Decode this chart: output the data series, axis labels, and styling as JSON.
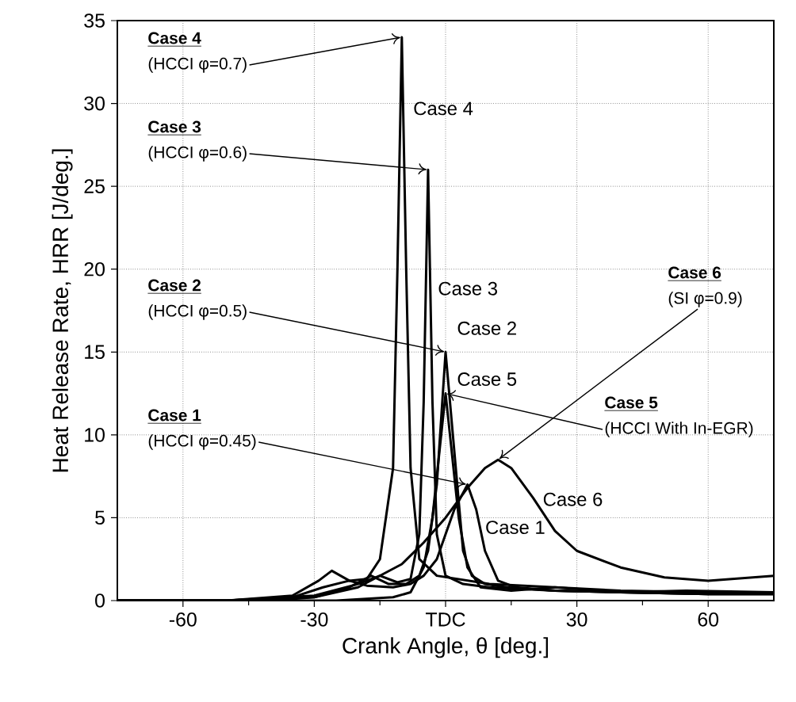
{
  "chart_data": {
    "type": "line",
    "xlabel": "Crank Angle, θ [deg.]",
    "ylabel": "Heat Release Rate, HRR [J/deg.]",
    "xlim": [
      -75,
      75
    ],
    "xticks": [
      -60,
      {
        "value": -45,
        "label": null
      },
      -30,
      {
        "value": -15,
        "label": null
      },
      {
        "value": 0,
        "label": "TDC"
      },
      {
        "value": 15,
        "label": null
      },
      30,
      {
        "value": 45,
        "label": null
      },
      60
    ],
    "ylim": [
      0,
      35
    ],
    "yticks": [
      0,
      5,
      10,
      15,
      20,
      25,
      30,
      35
    ],
    "grid": true,
    "series": [
      {
        "name": "Case 1",
        "color": "#000000",
        "x": [
          -75,
          -50,
          -35,
          -28,
          -22,
          -18,
          -12,
          -8,
          -5,
          -2,
          0,
          2,
          5,
          7,
          9,
          12,
          16,
          25,
          40,
          60,
          75
        ],
        "values": [
          0,
          0,
          0.2,
          0.8,
          1.2,
          0.9,
          0.8,
          1,
          1.5,
          2.5,
          4,
          5.5,
          7,
          5.5,
          3,
          1.2,
          0.8,
          0.6,
          0.5,
          0.4,
          0.4
        ]
      },
      {
        "name": "Case 2",
        "color": "#000000",
        "x": [
          -75,
          -50,
          -30,
          -22,
          -17,
          -13,
          -9,
          -6,
          -4,
          -2,
          0,
          2,
          4,
          6,
          9,
          14,
          25,
          40,
          60,
          75
        ],
        "values": [
          0,
          0,
          0.2,
          0.8,
          1.5,
          1,
          1,
          1.5,
          3,
          7,
          15,
          9,
          3,
          1.5,
          1,
          0.8,
          0.6,
          0.5,
          0.4,
          0.4
        ]
      },
      {
        "name": "Case 3",
        "color": "#000000",
        "x": [
          -75,
          -50,
          -30,
          -20,
          -15,
          -11,
          -8,
          -6,
          -5,
          -4,
          -3,
          -2,
          0,
          4,
          10,
          25,
          40,
          60,
          75
        ],
        "values": [
          0,
          0,
          0.3,
          1,
          1.5,
          1.1,
          1.3,
          4,
          12,
          26,
          12,
          4,
          1.5,
          1,
          0.8,
          0.6,
          0.5,
          0.4,
          0.4
        ]
      },
      {
        "name": "Case 4",
        "color": "#000000",
        "x": [
          -75,
          -50,
          -35,
          -29,
          -26,
          -22,
          -18,
          -15,
          -12,
          -11,
          -10,
          -9,
          -8,
          -6,
          -2,
          10,
          25,
          40,
          60,
          75
        ],
        "values": [
          0,
          0,
          0.3,
          1.2,
          1.8,
          1.2,
          1.3,
          2.5,
          8,
          20,
          34,
          20,
          8,
          2.5,
          1.5,
          1,
          0.8,
          0.6,
          0.5,
          0.5
        ]
      },
      {
        "name": "Case 5",
        "color": "#000000",
        "x": [
          -75,
          -50,
          -25,
          -12,
          -8,
          -5,
          -3,
          -1,
          0,
          1,
          3,
          5,
          8,
          15,
          25,
          40,
          55,
          75
        ],
        "values": [
          0,
          0,
          0,
          0.2,
          0.5,
          2,
          5,
          10,
          12.5,
          10,
          5,
          2,
          0.8,
          0.6,
          0.8,
          0.5,
          0.6,
          0.5
        ]
      },
      {
        "name": "Case 6",
        "color": "#000000",
        "x": [
          -75,
          -40,
          -30,
          -20,
          -10,
          -5,
          0,
          5,
          9,
          12,
          15,
          20,
          25,
          30,
          40,
          50,
          60,
          75
        ],
        "values": [
          0,
          0,
          0.2,
          0.8,
          2.2,
          3.5,
          5,
          6.8,
          8,
          8.5,
          8,
          6.2,
          4.2,
          3,
          2,
          1.4,
          1.2,
          1.5
        ]
      }
    ],
    "annotations": [
      "Case 1",
      {
        "text": "(HCCI φ=0.45)",
        "x": 5,
        "y": 7
      },
      "Case 2",
      {
        "text": "(HCCI φ=0.5)",
        "x": 0,
        "y": 15
      },
      "Case 3",
      {
        "text": "(HCCI φ=0.6)",
        "x": -4,
        "y": 26
      },
      "Case 4",
      {
        "text": "(HCCI φ=0.7)",
        "x": -10,
        "y": 34
      },
      "Case 5",
      {
        "text": "(HCCI With In-EGR)",
        "x": 0,
        "y": 12.5
      },
      "Case 6",
      {
        "text": "(SI φ=0.9)",
        "x": 12,
        "y": 8.5
      }
    ]
  }
}
